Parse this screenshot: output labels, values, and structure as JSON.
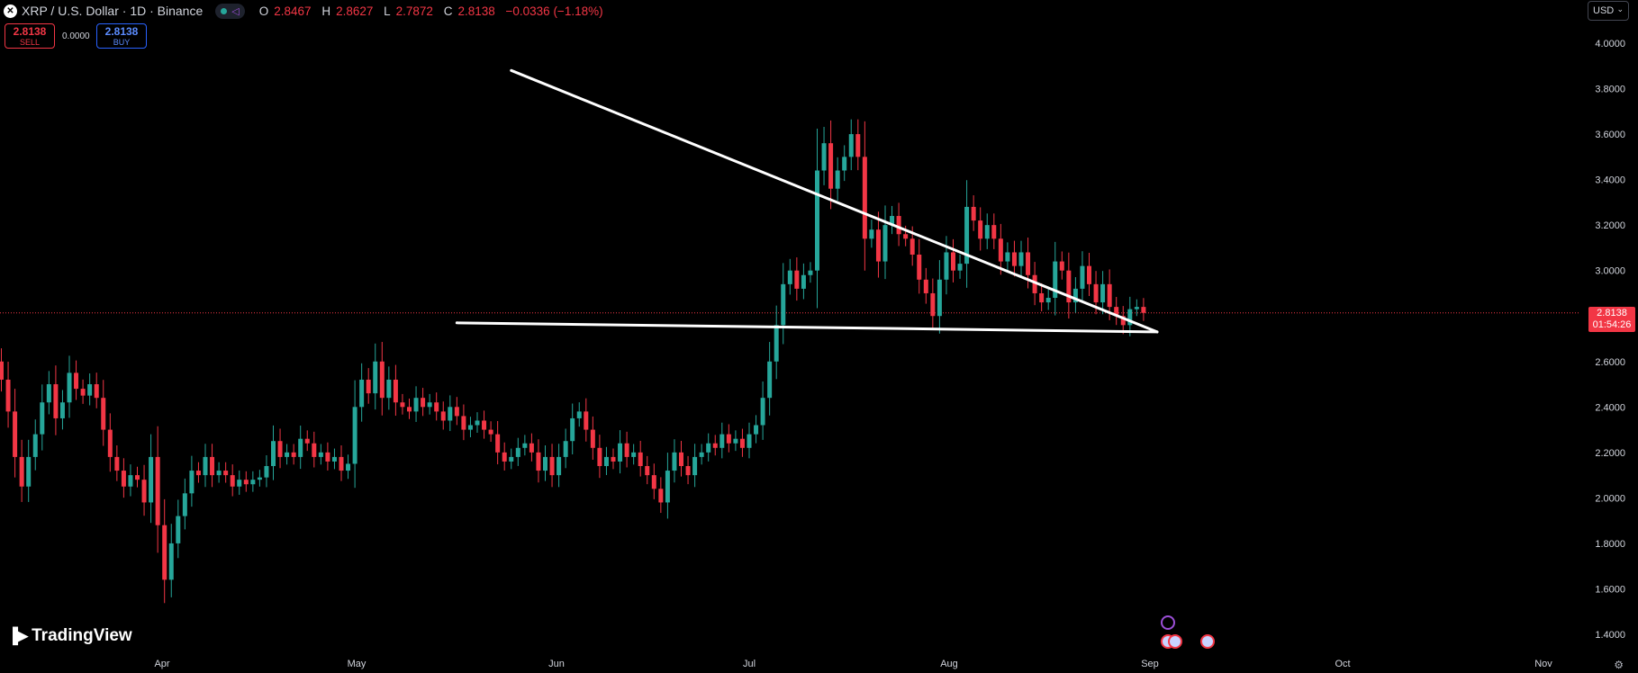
{
  "header": {
    "symbol_icon": "close-x-icon",
    "title": "XRP / U.S. Dollar · 1D · Binance",
    "ohlc": [
      {
        "k": "O",
        "v": "2.8467"
      },
      {
        "k": "H",
        "v": "2.8627"
      },
      {
        "k": "L",
        "v": "2.7872"
      },
      {
        "k": "C",
        "v": "2.8138"
      }
    ],
    "change": "−0.0336 (−1.18%)"
  },
  "trade": {
    "sell_price": "2.8138",
    "sell_label": "SELL",
    "spread": "0.0000",
    "buy_price": "2.8138",
    "buy_label": "BUY"
  },
  "currency": "USD",
  "logo_text": "TradingView",
  "price_tag": {
    "price": "2.8138",
    "countdown": "01:54:26"
  },
  "colors": {
    "up": "#26a69a",
    "down": "#f23645",
    "background": "#000000",
    "trendline": "#ffffff"
  },
  "chart_data": {
    "type": "candlestick",
    "title": "XRP / U.S. Dollar · 1D · Binance",
    "x_labels": [
      "Apr",
      "May",
      "Jun",
      "Jul",
      "Aug",
      "Sep",
      "Oct",
      "Nov"
    ],
    "y_ticks": [
      "4.0000",
      "3.8000",
      "3.6000",
      "3.4000",
      "3.2000",
      "3.0000",
      "2.6000",
      "2.4000",
      "2.2000",
      "2.0000",
      "1.8000",
      "1.6000",
      "1.4000"
    ],
    "ylim": [
      1.33,
      4.1
    ],
    "last_price": 2.8138,
    "grid": false,
    "close_series": [
      2.52,
      2.38,
      2.18,
      2.05,
      2.18,
      2.28,
      2.42,
      2.5,
      2.35,
      2.42,
      2.55,
      2.48,
      2.45,
      2.5,
      2.44,
      2.3,
      2.18,
      2.12,
      2.05,
      2.1,
      2.08,
      1.98,
      2.18,
      1.88,
      1.64,
      1.8,
      1.92,
      2.02,
      2.12,
      2.1,
      2.18,
      2.1,
      2.12,
      2.1,
      2.05,
      2.08,
      2.06,
      2.08,
      2.09,
      2.14,
      2.25,
      2.18,
      2.2,
      2.18,
      2.26,
      2.24,
      2.18,
      2.2,
      2.16,
      2.18,
      2.12,
      2.15,
      2.4,
      2.52,
      2.46,
      2.6,
      2.44,
      2.52,
      2.42,
      2.4,
      2.38,
      2.44,
      2.4,
      2.42,
      2.38,
      2.34,
      2.4,
      2.36,
      2.3,
      2.32,
      2.34,
      2.3,
      2.28,
      2.2,
      2.16,
      2.18,
      2.22,
      2.24,
      2.2,
      2.12,
      2.18,
      2.1,
      2.18,
      2.25,
      2.35,
      2.38,
      2.3,
      2.22,
      2.14,
      2.18,
      2.16,
      2.24,
      2.18,
      2.2,
      2.14,
      2.1,
      2.04,
      1.98,
      2.12,
      2.2,
      2.14,
      2.1,
      2.18,
      2.2,
      2.24,
      2.22,
      2.28,
      2.24,
      2.26,
      2.22,
      2.28,
      2.32,
      2.44,
      2.6,
      2.76,
      2.94,
      3.0,
      2.92,
      2.98,
      3.0,
      3.44,
      3.56,
      3.36,
      3.44,
      3.5,
      3.6,
      3.5,
      3.14,
      3.18,
      3.04,
      3.2,
      3.24,
      3.16,
      3.14,
      3.07,
      2.96,
      2.9,
      2.8,
      2.96,
      3.08,
      3.0,
      3.03,
      3.28,
      3.22,
      3.14,
      3.2,
      3.14,
      3.04,
      3.08,
      3.02,
      3.08,
      2.98,
      2.9,
      2.86,
      2.88,
      3.04,
      3.0,
      2.86,
      2.92,
      3.02,
      2.94,
      2.86,
      2.94,
      2.84,
      2.8,
      2.76,
      2.83,
      2.84,
      2.8138
    ],
    "trendlines": [
      {
        "name": "descending-resistance",
        "from": {
          "x_day": 75,
          "y": 3.88
        },
        "to": {
          "x_day": 170,
          "y": 2.73
        }
      },
      {
        "name": "horizontal-support",
        "from": {
          "x_day": 67,
          "y": 2.77
        },
        "to": {
          "x_day": 170,
          "y": 2.73
        }
      }
    ]
  }
}
